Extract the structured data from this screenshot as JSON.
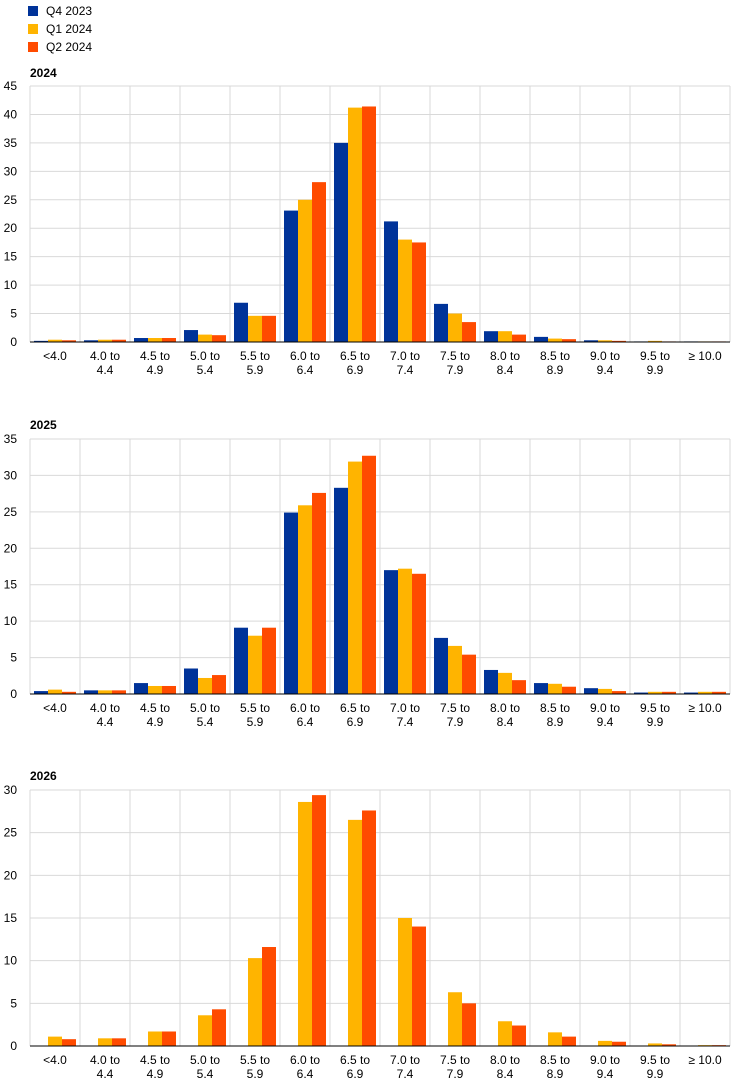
{
  "legend": [
    {
      "name": "Q4 2023",
      "color": "#003399"
    },
    {
      "name": "Q1 2024",
      "color": "#FFB400"
    },
    {
      "name": "Q2 2024",
      "color": "#FF4B00"
    }
  ],
  "chart_data": [
    {
      "type": "bar",
      "title": "2024",
      "categories": [
        "<4.0",
        "4.0 to\n4.4",
        "4.5 to\n4.9",
        "5.0 to\n5.4",
        "5.5 to\n5.9",
        "6.0 to\n6.4",
        "6.5 to\n6.9",
        "7.0 to\n7.4",
        "7.5 to\n7.9",
        "8.0 to\n8.4",
        "8.5 to\n8.9",
        "9.0 to\n9.4",
        "9.5 to\n9.9",
        "≥ 10.0"
      ],
      "ylim": [
        0,
        45
      ],
      "yticks": [
        0,
        5,
        10,
        15,
        20,
        25,
        30,
        35,
        40,
        45
      ],
      "grid": true,
      "series": [
        {
          "name": "Q4 2023",
          "values": [
            0.2,
            0.3,
            0.7,
            2.1,
            6.9,
            23.1,
            35.0,
            21.2,
            6.7,
            1.9,
            0.9,
            0.3,
            0.1,
            0.1
          ]
        },
        {
          "name": "Q1 2024",
          "values": [
            0.4,
            0.4,
            0.7,
            1.3,
            4.6,
            25.0,
            41.2,
            18.0,
            5.0,
            1.9,
            0.6,
            0.3,
            0.2,
            0.1
          ]
        },
        {
          "name": "Q2 2024",
          "values": [
            0.3,
            0.4,
            0.7,
            1.2,
            4.6,
            28.1,
            41.4,
            17.5,
            3.5,
            1.3,
            0.5,
            0.2,
            0.1,
            0.1
          ]
        }
      ]
    },
    {
      "type": "bar",
      "title": "2025",
      "categories": [
        "<4.0",
        "4.0 to\n4.4",
        "4.5 to\n4.9",
        "5.0 to\n5.4",
        "5.5 to\n5.9",
        "6.0 to\n6.4",
        "6.5 to\n6.9",
        "7.0 to\n7.4",
        "7.5 to\n7.9",
        "8.0 to\n8.4",
        "8.5 to\n8.9",
        "9.0 to\n9.4",
        "9.5 to\n9.9",
        "≥ 10.0"
      ],
      "ylim": [
        0,
        35
      ],
      "yticks": [
        0,
        5,
        10,
        15,
        20,
        25,
        30,
        35
      ],
      "grid": true,
      "series": [
        {
          "name": "Q4 2023",
          "values": [
            0.4,
            0.5,
            1.5,
            3.5,
            9.1,
            24.9,
            28.3,
            17.0,
            7.7,
            3.3,
            1.5,
            0.8,
            0.2,
            0.2
          ]
        },
        {
          "name": "Q1 2024",
          "values": [
            0.6,
            0.5,
            1.1,
            2.2,
            8.0,
            25.9,
            31.9,
            17.2,
            6.6,
            2.9,
            1.4,
            0.7,
            0.3,
            0.3
          ]
        },
        {
          "name": "Q2 2024",
          "values": [
            0.3,
            0.5,
            1.1,
            2.6,
            9.1,
            27.6,
            32.7,
            16.5,
            5.4,
            1.9,
            1.0,
            0.4,
            0.3,
            0.3
          ]
        }
      ]
    },
    {
      "type": "bar",
      "title": "2026",
      "categories": [
        "<4.0",
        "4.0 to\n4.4",
        "4.5 to\n4.9",
        "5.0 to\n5.4",
        "5.5 to\n5.9",
        "6.0 to\n6.4",
        "6.5 to\n6.9",
        "7.0 to\n7.4",
        "7.5 to\n7.9",
        "8.0 to\n8.4",
        "8.5 to\n8.9",
        "9.0 to\n9.4",
        "9.5 to\n9.9",
        "≥ 10.0"
      ],
      "ylim": [
        0,
        30
      ],
      "yticks": [
        0,
        5,
        10,
        15,
        20,
        25,
        30
      ],
      "grid": true,
      "series": [
        {
          "name": "Q1 2024",
          "values": [
            1.1,
            0.9,
            1.7,
            3.6,
            10.3,
            28.6,
            26.5,
            15.0,
            6.3,
            2.9,
            1.6,
            0.6,
            0.3,
            0.1
          ]
        },
        {
          "name": "Q2 2024",
          "values": [
            0.8,
            0.9,
            1.7,
            4.3,
            11.6,
            29.4,
            27.6,
            14.0,
            5.0,
            2.4,
            1.1,
            0.5,
            0.2,
            0.1
          ]
        }
      ]
    }
  ]
}
